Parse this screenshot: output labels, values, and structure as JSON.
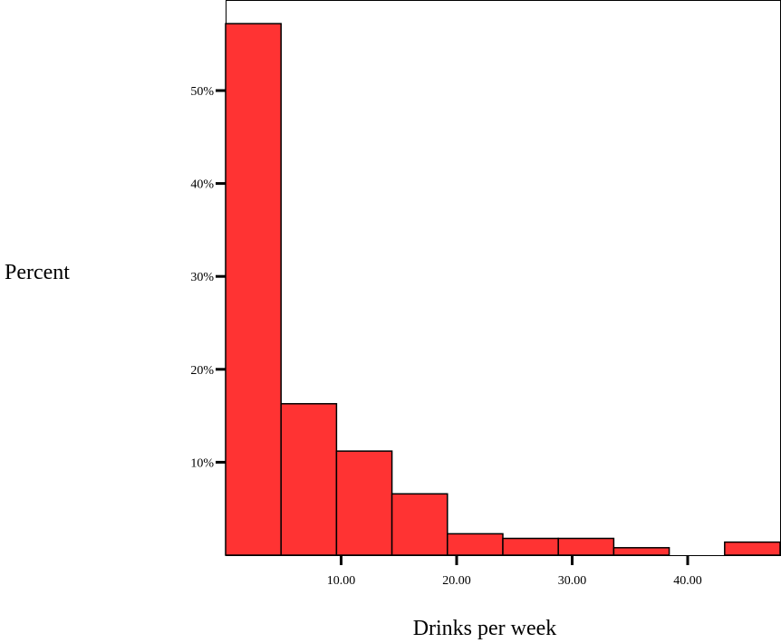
{
  "chart_data": {
    "type": "bar",
    "variant": "histogram",
    "xlabel": "Drinks per week",
    "ylabel": "Percent",
    "bins": [
      {
        "start": 0.0,
        "end": 4.8,
        "value": 57.2
      },
      {
        "start": 4.8,
        "end": 9.6,
        "value": 16.3
      },
      {
        "start": 9.6,
        "end": 14.4,
        "value": 11.2
      },
      {
        "start": 14.4,
        "end": 19.2,
        "value": 6.6
      },
      {
        "start": 19.2,
        "end": 24.0,
        "value": 2.3
      },
      {
        "start": 24.0,
        "end": 28.8,
        "value": 1.8
      },
      {
        "start": 28.8,
        "end": 33.6,
        "value": 1.8
      },
      {
        "start": 33.6,
        "end": 38.4,
        "value": 0.8
      },
      {
        "start": 38.4,
        "end": 43.2,
        "value": 0.0
      },
      {
        "start": 43.2,
        "end": 48.0,
        "value": 1.4
      }
    ],
    "x_ticks": [
      {
        "value": 10,
        "label": "10.00"
      },
      {
        "value": 20,
        "label": "20.00"
      },
      {
        "value": 30,
        "label": "30.00"
      },
      {
        "value": 40,
        "label": "40.00"
      }
    ],
    "y_ticks": [
      {
        "value": 10,
        "label": "10%"
      },
      {
        "value": 20,
        "label": "20%"
      },
      {
        "value": 30,
        "label": "30%"
      },
      {
        "value": 40,
        "label": "40%"
      },
      {
        "value": 50,
        "label": "50%"
      }
    ],
    "xlim": [
      0.0,
      48.0
    ],
    "ylim": [
      0,
      60
    ],
    "grid": false,
    "bar_color": "#ff3333"
  }
}
